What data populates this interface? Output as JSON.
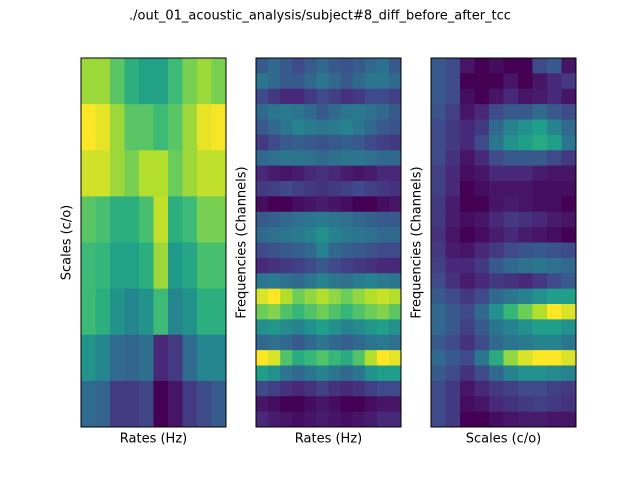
{
  "title": "./out_01_acoustic_analysis/subject#8_diff_before_after_tcc",
  "chart_data": [
    {
      "type": "heatmap",
      "colormap": "viridis",
      "xlabel": "Rates (Hz)",
      "ylabel": "Scales (c/o)",
      "values": [
        [
          0.85,
          0.85,
          0.75,
          0.65,
          0.6,
          0.6,
          0.7,
          0.8,
          0.85,
          0.8
        ],
        [
          0.98,
          0.95,
          0.85,
          0.75,
          0.75,
          0.7,
          0.75,
          0.85,
          0.95,
          0.97
        ],
        [
          0.92,
          0.92,
          0.85,
          0.8,
          0.88,
          0.88,
          0.78,
          0.85,
          0.9,
          0.9
        ],
        [
          0.75,
          0.72,
          0.65,
          0.65,
          0.72,
          0.9,
          0.65,
          0.7,
          0.8,
          0.8
        ],
        [
          0.7,
          0.68,
          0.6,
          0.6,
          0.65,
          0.85,
          0.58,
          0.62,
          0.72,
          0.72
        ],
        [
          0.7,
          0.65,
          0.55,
          0.5,
          0.55,
          0.7,
          0.5,
          0.55,
          0.65,
          0.65
        ],
        [
          0.55,
          0.5,
          0.4,
          0.38,
          0.42,
          0.2,
          0.25,
          0.4,
          0.5,
          0.5
        ],
        [
          0.4,
          0.38,
          0.25,
          0.25,
          0.28,
          0.1,
          0.15,
          0.25,
          0.3,
          0.35
        ]
      ]
    },
    {
      "type": "heatmap",
      "colormap": "viridis",
      "xlabel": "Rates (Hz)",
      "ylabel": "Frequencies (Channels)",
      "values": [
        [
          0.3,
          0.35,
          0.3,
          0.25,
          0.3,
          0.35,
          0.3,
          0.28,
          0.3,
          0.35,
          0.38,
          0.3
        ],
        [
          0.4,
          0.35,
          0.3,
          0.3,
          0.35,
          0.4,
          0.35,
          0.3,
          0.35,
          0.4,
          0.4,
          0.35
        ],
        [
          0.25,
          0.2,
          0.15,
          0.15,
          0.2,
          0.25,
          0.22,
          0.18,
          0.2,
          0.25,
          0.25,
          0.22
        ],
        [
          0.35,
          0.4,
          0.42,
          0.4,
          0.35,
          0.3,
          0.35,
          0.4,
          0.42,
          0.38,
          0.35,
          0.3
        ],
        [
          0.3,
          0.35,
          0.4,
          0.45,
          0.42,
          0.4,
          0.42,
          0.45,
          0.4,
          0.35,
          0.3,
          0.28
        ],
        [
          0.2,
          0.25,
          0.3,
          0.32,
          0.3,
          0.28,
          0.3,
          0.32,
          0.3,
          0.25,
          0.22,
          0.2
        ],
        [
          0.35,
          0.38,
          0.4,
          0.4,
          0.38,
          0.35,
          0.38,
          0.4,
          0.4,
          0.38,
          0.35,
          0.35
        ],
        [
          0.15,
          0.12,
          0.1,
          0.12,
          0.15,
          0.18,
          0.15,
          0.12,
          0.1,
          0.12,
          0.15,
          0.15
        ],
        [
          0.2,
          0.22,
          0.25,
          0.22,
          0.2,
          0.18,
          0.2,
          0.22,
          0.25,
          0.22,
          0.2,
          0.18
        ],
        [
          0.08,
          0.05,
          0.05,
          0.08,
          0.1,
          0.12,
          0.1,
          0.08,
          0.05,
          0.05,
          0.08,
          0.1
        ],
        [
          0.3,
          0.32,
          0.35,
          0.38,
          0.4,
          0.42,
          0.4,
          0.38,
          0.35,
          0.32,
          0.3,
          0.3
        ],
        [
          0.35,
          0.38,
          0.4,
          0.42,
          0.45,
          0.5,
          0.45,
          0.42,
          0.4,
          0.38,
          0.35,
          0.35
        ],
        [
          0.25,
          0.28,
          0.3,
          0.32,
          0.35,
          0.45,
          0.35,
          0.32,
          0.3,
          0.28,
          0.25,
          0.25
        ],
        [
          0.15,
          0.18,
          0.2,
          0.22,
          0.25,
          0.3,
          0.25,
          0.22,
          0.2,
          0.18,
          0.15,
          0.15
        ],
        [
          0.4,
          0.42,
          0.38,
          0.35,
          0.4,
          0.45,
          0.4,
          0.38,
          0.42,
          0.45,
          0.42,
          0.4
        ],
        [
          0.9,
          0.95,
          0.85,
          0.75,
          0.8,
          0.85,
          0.8,
          0.75,
          0.8,
          0.85,
          0.88,
          0.85
        ],
        [
          0.75,
          0.78,
          0.7,
          0.65,
          0.7,
          0.75,
          0.7,
          0.65,
          0.7,
          0.75,
          0.78,
          0.72
        ],
        [
          0.5,
          0.52,
          0.48,
          0.45,
          0.5,
          0.55,
          0.5,
          0.45,
          0.48,
          0.52,
          0.55,
          0.5
        ],
        [
          0.35,
          0.38,
          0.35,
          0.3,
          0.35,
          0.4,
          0.35,
          0.32,
          0.35,
          0.4,
          0.42,
          0.38
        ],
        [
          0.95,
          0.9,
          0.7,
          0.6,
          0.65,
          0.7,
          0.65,
          0.6,
          0.7,
          0.85,
          0.95,
          0.92
        ],
        [
          0.55,
          0.5,
          0.4,
          0.35,
          0.4,
          0.45,
          0.4,
          0.35,
          0.4,
          0.5,
          0.55,
          0.55
        ],
        [
          0.25,
          0.22,
          0.18,
          0.15,
          0.18,
          0.22,
          0.18,
          0.15,
          0.18,
          0.22,
          0.25,
          0.25
        ],
        [
          0.1,
          0.08,
          0.05,
          0.05,
          0.08,
          0.1,
          0.08,
          0.05,
          0.05,
          0.08,
          0.1,
          0.1
        ],
        [
          0.15,
          0.12,
          0.1,
          0.08,
          0.1,
          0.12,
          0.1,
          0.08,
          0.1,
          0.12,
          0.15,
          0.15
        ]
      ]
    },
    {
      "type": "heatmap",
      "colormap": "viridis",
      "xlabel": "Scales (c/o)",
      "ylabel": "Frequencies (Channels)",
      "values": [
        [
          0.3,
          0.25,
          0.1,
          0.05,
          0.08,
          0.05,
          0.05,
          0.25,
          0.3,
          0.1
        ],
        [
          0.3,
          0.25,
          0.05,
          0.05,
          0.05,
          0.1,
          0.05,
          0.1,
          0.15,
          0.2
        ],
        [
          0.3,
          0.25,
          0.08,
          0.05,
          0.1,
          0.15,
          0.1,
          0.12,
          0.15,
          0.1
        ],
        [
          0.28,
          0.22,
          0.1,
          0.15,
          0.25,
          0.3,
          0.3,
          0.35,
          0.3,
          0.25
        ],
        [
          0.25,
          0.2,
          0.15,
          0.2,
          0.35,
          0.45,
          0.5,
          0.55,
          0.45,
          0.35
        ],
        [
          0.25,
          0.2,
          0.15,
          0.25,
          0.4,
          0.5,
          0.55,
          0.6,
          0.55,
          0.4
        ],
        [
          0.25,
          0.18,
          0.1,
          0.15,
          0.25,
          0.3,
          0.3,
          0.3,
          0.25,
          0.2
        ],
        [
          0.22,
          0.15,
          0.08,
          0.1,
          0.15,
          0.15,
          0.15,
          0.12,
          0.1,
          0.1
        ],
        [
          0.22,
          0.15,
          0.05,
          0.08,
          0.1,
          0.1,
          0.1,
          0.08,
          0.08,
          0.08
        ],
        [
          0.2,
          0.12,
          0.05,
          0.05,
          0.1,
          0.12,
          0.1,
          0.08,
          0.08,
          0.05
        ],
        [
          0.2,
          0.12,
          0.08,
          0.1,
          0.15,
          0.2,
          0.18,
          0.15,
          0.12,
          0.1
        ],
        [
          0.18,
          0.1,
          0.05,
          0.08,
          0.12,
          0.15,
          0.12,
          0.1,
          0.08,
          0.05
        ],
        [
          0.2,
          0.12,
          0.1,
          0.15,
          0.2,
          0.25,
          0.28,
          0.3,
          0.28,
          0.25
        ],
        [
          0.22,
          0.15,
          0.15,
          0.2,
          0.3,
          0.35,
          0.38,
          0.4,
          0.38,
          0.35
        ],
        [
          0.25,
          0.18,
          0.12,
          0.15,
          0.2,
          0.18,
          0.15,
          0.2,
          0.25,
          0.3
        ],
        [
          0.3,
          0.25,
          0.2,
          0.25,
          0.35,
          0.4,
          0.45,
          0.5,
          0.55,
          0.55
        ],
        [
          0.35,
          0.3,
          0.25,
          0.35,
          0.5,
          0.65,
          0.75,
          0.85,
          0.95,
          0.9
        ],
        [
          0.35,
          0.3,
          0.22,
          0.3,
          0.4,
          0.45,
          0.5,
          0.55,
          0.55,
          0.5
        ],
        [
          0.3,
          0.25,
          0.18,
          0.25,
          0.35,
          0.4,
          0.42,
          0.45,
          0.45,
          0.4
        ],
        [
          0.35,
          0.3,
          0.25,
          0.4,
          0.6,
          0.8,
          0.9,
          0.95,
          0.95,
          0.9
        ],
        [
          0.3,
          0.25,
          0.18,
          0.25,
          0.35,
          0.45,
          0.5,
          0.5,
          0.48,
          0.45
        ],
        [
          0.25,
          0.2,
          0.1,
          0.15,
          0.2,
          0.22,
          0.25,
          0.25,
          0.22,
          0.2
        ],
        [
          0.25,
          0.2,
          0.08,
          0.1,
          0.15,
          0.18,
          0.2,
          0.22,
          0.2,
          0.18
        ],
        [
          0.25,
          0.2,
          0.05,
          0.05,
          0.08,
          0.1,
          0.12,
          0.12,
          0.1,
          0.1
        ]
      ]
    }
  ]
}
